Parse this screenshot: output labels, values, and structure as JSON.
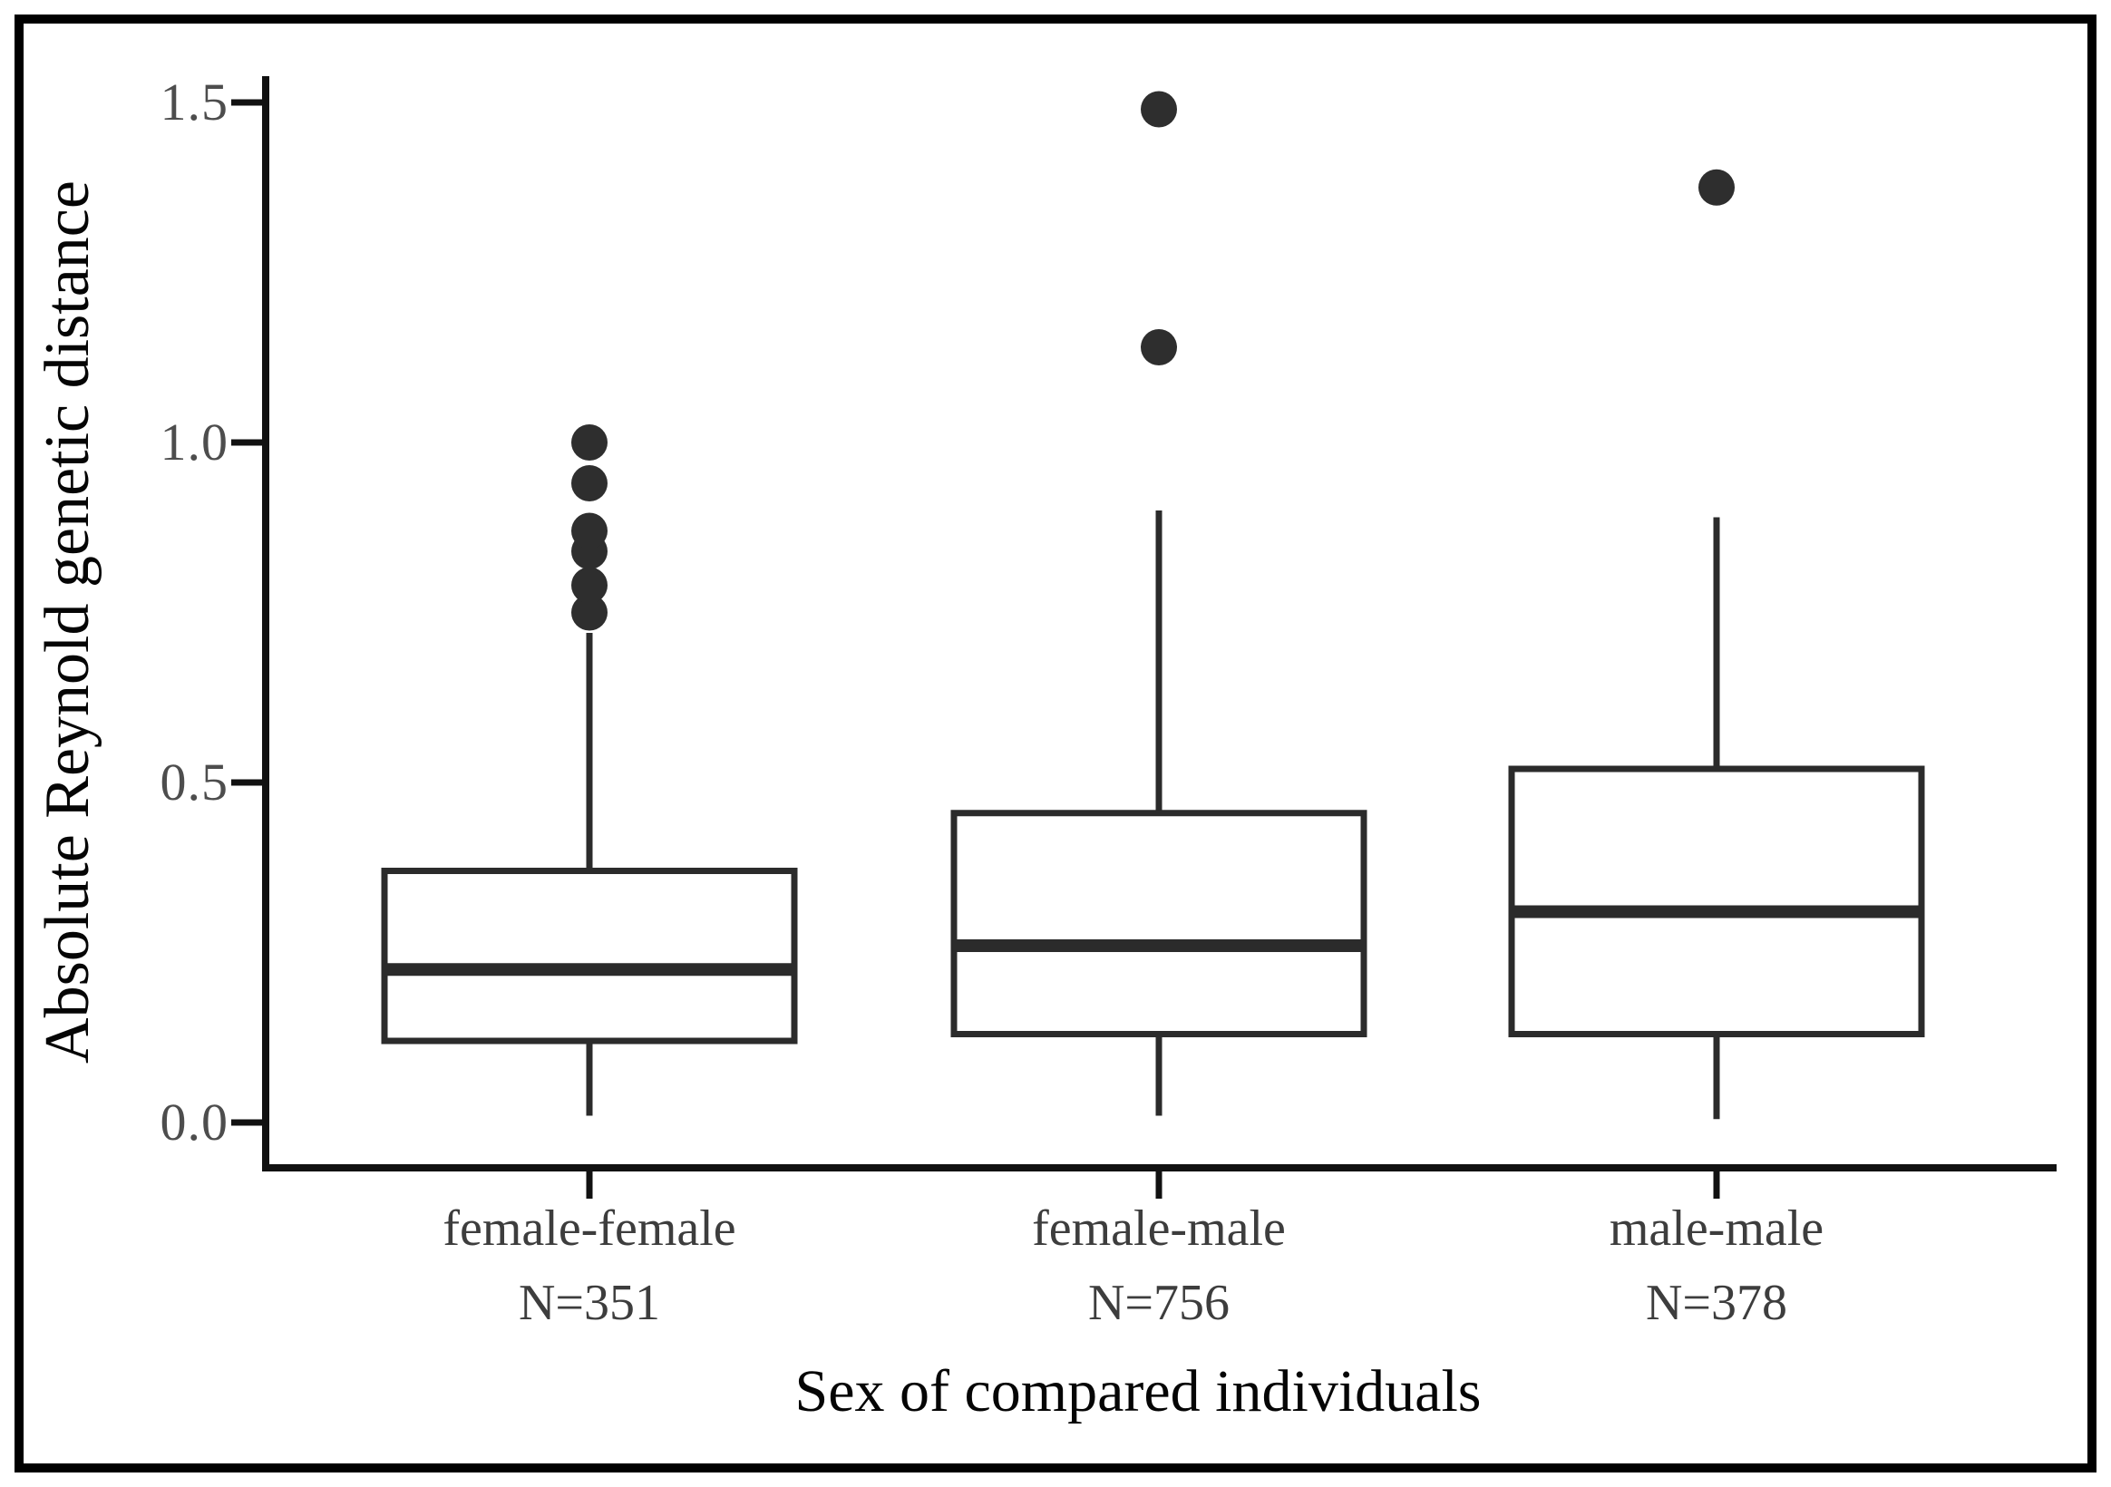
{
  "figure": {
    "y_tick_labels": [
      "1.5",
      "1.0",
      "0.5",
      "0.0"
    ]
  },
  "chart_data": {
    "type": "boxplot",
    "title": "",
    "xlabel": "Sex of compared individuals",
    "ylabel": "Absolute Reynold genetic distance",
    "ylim": [
      0,
      1.5
    ],
    "y_ticks": [
      0.0,
      0.5,
      1.0,
      1.5
    ],
    "grid": false,
    "legend": "none",
    "categories": [
      {
        "label": "female-female",
        "n_label": "N=351"
      },
      {
        "label": "female-male",
        "n_label": "N=756"
      },
      {
        "label": "male-male",
        "n_label": "N=378"
      }
    ],
    "series": [
      {
        "name": "female-female",
        "whisker_low": 0.01,
        "q1": 0.12,
        "median": 0.225,
        "q3": 0.37,
        "whisker_high": 0.72,
        "outliers": [
          0.75,
          0.79,
          0.84,
          0.87,
          0.94,
          1.0
        ]
      },
      {
        "name": "female-male",
        "whisker_low": 0.01,
        "q1": 0.13,
        "median": 0.26,
        "q3": 0.455,
        "whisker_high": 0.9,
        "outliers": [
          1.14,
          1.49
        ]
      },
      {
        "name": "male-male",
        "whisker_low": 0.005,
        "q1": 0.13,
        "median": 0.31,
        "q3": 0.52,
        "whisker_high": 0.89,
        "outliers": [
          1.375
        ]
      }
    ],
    "style": {
      "line_color": "#2b2b2b",
      "box_fill": "#ffffff",
      "outlier_color": "#2e2e2e",
      "axis_color": "#111111"
    }
  }
}
